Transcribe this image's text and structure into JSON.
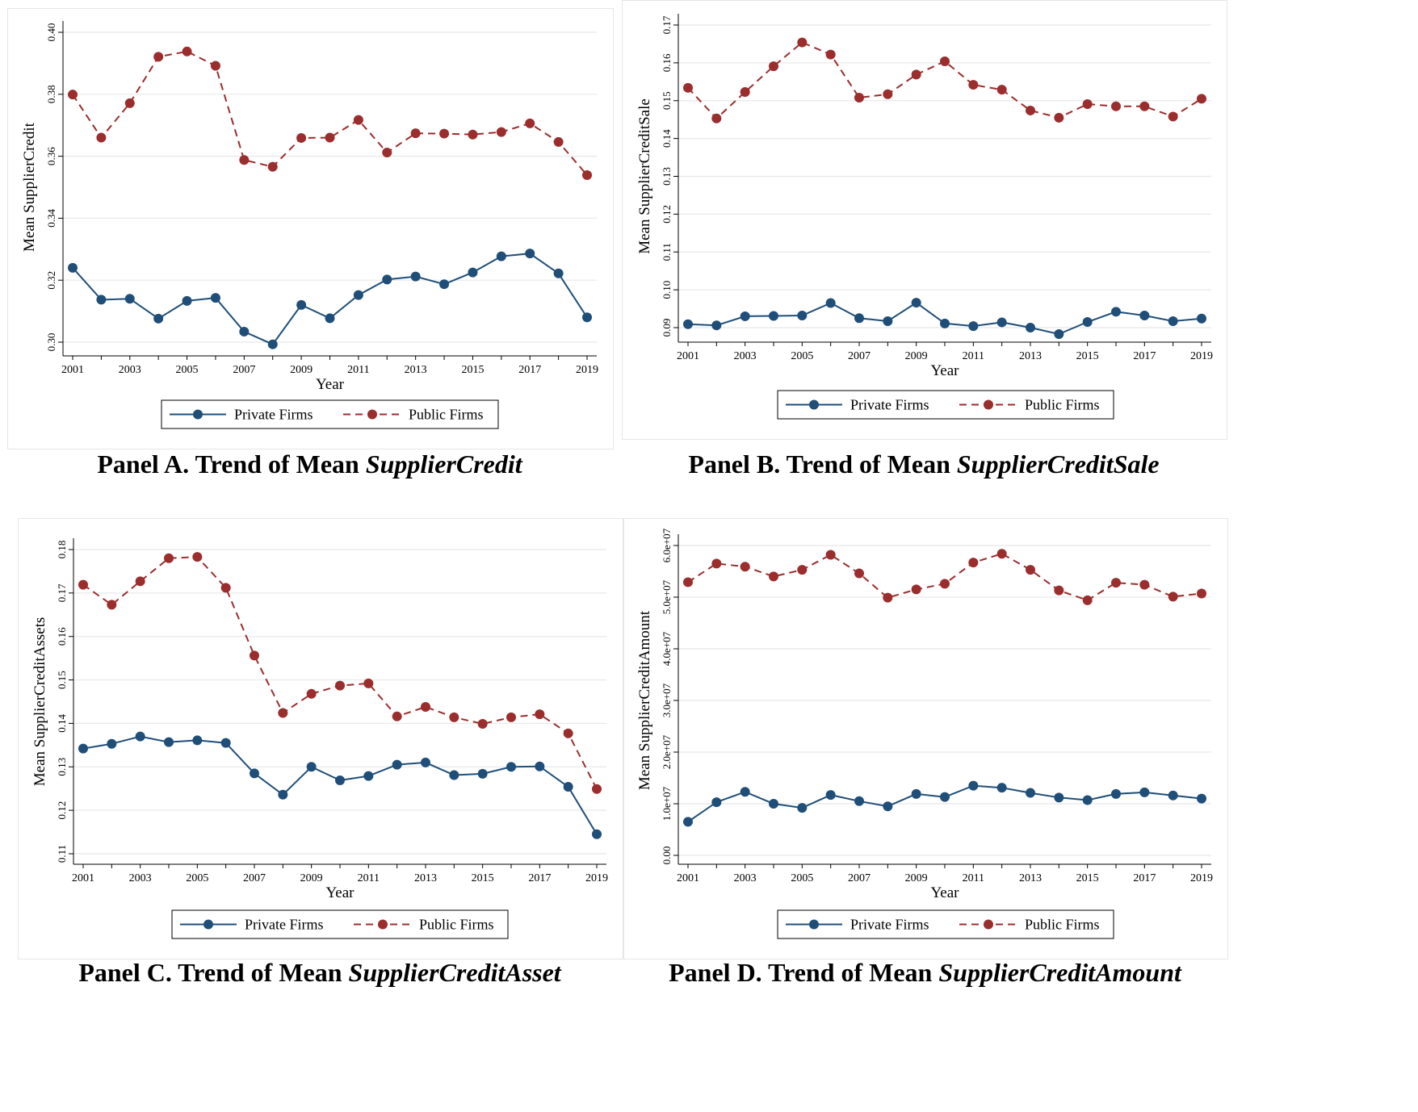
{
  "colors": {
    "private": "#1f4e79",
    "public": "#9b2d2d",
    "grid": "#e8e8e8",
    "axis": "#000000"
  },
  "legend": {
    "private_label": "Private Firms",
    "public_label": "Public Firms"
  },
  "panels": [
    {
      "caption_prefix": "Panel A. Trend of Mean ",
      "caption_italic": "SupplierCredit"
    },
    {
      "caption_prefix": "Panel B. Trend of Mean ",
      "caption_italic": "SupplierCreditSale"
    },
    {
      "caption_prefix": "Panel C. Trend of Mean ",
      "caption_italic": "SupplierCreditAsset"
    },
    {
      "caption_prefix": "Panel D. Trend of Mean ",
      "caption_italic": "SupplierCreditAmount"
    }
  ],
  "chart_data": [
    {
      "type": "line",
      "xlabel": "Year",
      "ylabel": "Mean SupplierCredit",
      "x": [
        2001,
        2002,
        2003,
        2004,
        2005,
        2006,
        2007,
        2008,
        2009,
        2010,
        2011,
        2012,
        2013,
        2014,
        2015,
        2016,
        2017,
        2018,
        2019
      ],
      "xticks": [
        "2001",
        "2003",
        "2005",
        "2007",
        "2009",
        "2011",
        "2013",
        "2015",
        "2017",
        "2019"
      ],
      "xlim": [
        2001,
        2019
      ],
      "ylim": [
        0.3,
        0.4
      ],
      "yticks": [
        "0.30",
        "0.32",
        "0.34",
        "0.36",
        "0.38",
        "0.40"
      ],
      "grid": true,
      "legend": "bottom",
      "series": [
        {
          "name": "Private Firms",
          "style": "solid",
          "values": [
            0.324,
            0.3137,
            0.314,
            0.3076,
            0.3133,
            0.3143,
            0.3034,
            0.2993,
            0.312,
            0.3077,
            0.3152,
            0.3202,
            0.3212,
            0.3187,
            0.3225,
            0.3277,
            0.3286,
            0.3222,
            0.308
          ]
        },
        {
          "name": "Public Firms",
          "style": "dashed",
          "values": [
            0.3799,
            0.366,
            0.3771,
            0.3921,
            0.3938,
            0.3892,
            0.3588,
            0.3566,
            0.3659,
            0.366,
            0.3717,
            0.3612,
            0.3674,
            0.3673,
            0.367,
            0.3678,
            0.3706,
            0.3646,
            0.3539
          ]
        }
      ]
    },
    {
      "type": "line",
      "xlabel": "Year",
      "ylabel": "Mean SupplierCreditSale",
      "x": [
        2001,
        2002,
        2003,
        2004,
        2005,
        2006,
        2007,
        2008,
        2009,
        2010,
        2011,
        2012,
        2013,
        2014,
        2015,
        2016,
        2017,
        2018,
        2019
      ],
      "xticks": [
        "2001",
        "2003",
        "2005",
        "2007",
        "2009",
        "2011",
        "2013",
        "2015",
        "2017",
        "2019"
      ],
      "xlim": [
        2001,
        2019
      ],
      "ylim": [
        0.09,
        0.17
      ],
      "yticks": [
        "0.09",
        "0.10",
        "0.11",
        "0.12",
        "0.13",
        "0.14",
        "0.15",
        "0.16",
        "0.17"
      ],
      "grid": true,
      "legend": "bottom",
      "series": [
        {
          "name": "Private Firms",
          "style": "solid",
          "values": [
            0.0909,
            0.0906,
            0.093,
            0.0931,
            0.0932,
            0.0965,
            0.0925,
            0.0917,
            0.0966,
            0.0911,
            0.0904,
            0.0914,
            0.09,
            0.0883,
            0.0915,
            0.0942,
            0.0932,
            0.0917,
            0.0924
          ]
        },
        {
          "name": "Public Firms",
          "style": "dashed",
          "values": [
            0.1534,
            0.1453,
            0.1523,
            0.1591,
            0.1654,
            0.1622,
            0.1508,
            0.1517,
            0.1569,
            0.1604,
            0.1542,
            0.1529,
            0.1474,
            0.1455,
            0.1491,
            0.1485,
            0.1485,
            0.1458,
            0.1505
          ]
        }
      ]
    },
    {
      "type": "line",
      "xlabel": "Year",
      "ylabel": "Mean SupplierCreditAssets",
      "x": [
        2001,
        2002,
        2003,
        2004,
        2005,
        2006,
        2007,
        2008,
        2009,
        2010,
        2011,
        2012,
        2013,
        2014,
        2015,
        2016,
        2017,
        2018,
        2019
      ],
      "xticks": [
        "2001",
        "2003",
        "2005",
        "2007",
        "2009",
        "2011",
        "2013",
        "2015",
        "2017",
        "2019"
      ],
      "xlim": [
        2001,
        2019
      ],
      "ylim": [
        0.11,
        0.18
      ],
      "yticks": [
        "0.11",
        "0.12",
        "0.13",
        "0.14",
        "0.15",
        "0.16",
        "0.17",
        "0.18"
      ],
      "grid": true,
      "legend": "bottom",
      "series": [
        {
          "name": "Private Firms",
          "style": "solid",
          "values": [
            0.1342,
            0.1353,
            0.137,
            0.1357,
            0.1361,
            0.1355,
            0.1285,
            0.1236,
            0.13,
            0.1269,
            0.1279,
            0.1305,
            0.131,
            0.1281,
            0.1284,
            0.13,
            0.1301,
            0.1254,
            0.1145
          ]
        },
        {
          "name": "Public Firms",
          "style": "dashed",
          "values": [
            0.1719,
            0.1673,
            0.1727,
            0.178,
            0.1783,
            0.1712,
            0.1556,
            0.1424,
            0.1468,
            0.1487,
            0.1492,
            0.1416,
            0.1438,
            0.1414,
            0.1399,
            0.1414,
            0.1421,
            0.1377,
            0.1249
          ]
        }
      ]
    },
    {
      "type": "line",
      "xlabel": "Year",
      "ylabel": "Mean SupplierCreditAmount",
      "x": [
        2001,
        2002,
        2003,
        2004,
        2005,
        2006,
        2007,
        2008,
        2009,
        2010,
        2011,
        2012,
        2013,
        2014,
        2015,
        2016,
        2017,
        2018,
        2019
      ],
      "xticks": [
        "2001",
        "2003",
        "2005",
        "2007",
        "2009",
        "2011",
        "2013",
        "2015",
        "2017",
        "2019"
      ],
      "xlim": [
        2001,
        2019
      ],
      "ylim": [
        0,
        60000000
      ],
      "yticks": [
        "0.00",
        "1.0e+07",
        "2.0e+07",
        "3.0e+07",
        "4.0e+07",
        "5.0e+07",
        "6.0e+07"
      ],
      "grid": true,
      "legend": "bottom",
      "series": [
        {
          "name": "Private Firms",
          "style": "solid",
          "values": [
            6500000,
            10300000,
            12300000,
            10000000,
            9200000,
            11700000,
            10500000,
            9500000,
            11900000,
            11300000,
            13500000,
            13100000,
            12100000,
            11200000,
            10700000,
            11900000,
            12200000,
            11600000,
            11000000
          ]
        },
        {
          "name": "Public Firms",
          "style": "dashed",
          "values": [
            52900000,
            56500000,
            55900000,
            54000000,
            55300000,
            58200000,
            54600000,
            49900000,
            51500000,
            52600000,
            56700000,
            58400000,
            55300000,
            51300000,
            49400000,
            52800000,
            52400000,
            50100000,
            50700000
          ]
        }
      ]
    }
  ]
}
